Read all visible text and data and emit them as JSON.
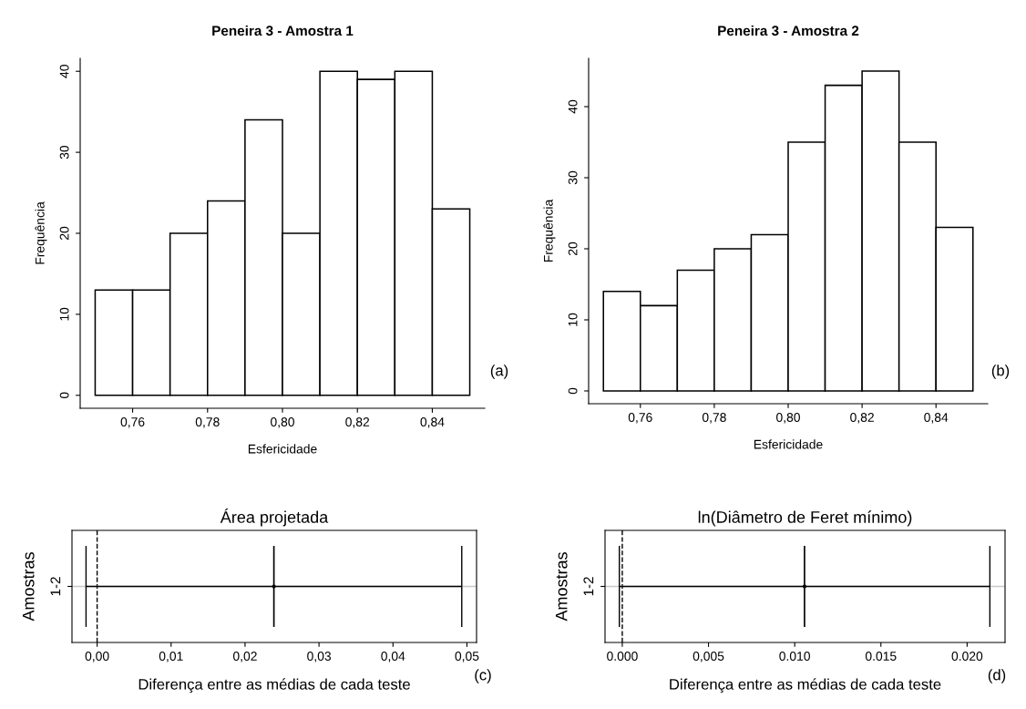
{
  "chart_data": [
    {
      "type": "histogram",
      "title": "Peneira 3 - Amostra 1",
      "xlabel": "Esfericidade",
      "ylabel": "Frequência",
      "bins": [
        0.75,
        0.76,
        0.77,
        0.78,
        0.79,
        0.8,
        0.81,
        0.82,
        0.83,
        0.84,
        0.85
      ],
      "values": [
        13,
        13,
        20,
        24,
        34,
        20,
        40,
        39,
        40,
        23
      ],
      "color": "#ffffff",
      "xlim": [
        0.746,
        0.854
      ],
      "ylim": [
        -1.6,
        41.6
      ],
      "xticks": [
        {
          "value": 0.76,
          "label": "0,76"
        },
        {
          "value": 0.78,
          "label": "0,78"
        },
        {
          "value": 0.8,
          "label": "0,80"
        },
        {
          "value": 0.82,
          "label": "0,82"
        },
        {
          "value": 0.84,
          "label": "0,84"
        }
      ],
      "yticks": [
        0,
        10,
        20,
        30,
        40
      ],
      "grid": false,
      "annotations": [
        "(a)"
      ]
    },
    {
      "type": "histogram",
      "title": "Peneira 3 - Amostra 2",
      "xlabel": "Esfericidade",
      "ylabel": "Frequência",
      "bins": [
        0.75,
        0.76,
        0.77,
        0.78,
        0.79,
        0.8,
        0.81,
        0.82,
        0.83,
        0.84,
        0.85
      ],
      "values": [
        14,
        12,
        17,
        20,
        22,
        35,
        43,
        45,
        35,
        23
      ],
      "color": "#ffffff",
      "xlim": [
        0.746,
        0.854
      ],
      "ylim": [
        -1.8,
        46.8
      ],
      "xticks": [
        {
          "value": 0.76,
          "label": "0,76"
        },
        {
          "value": 0.78,
          "label": "0,78"
        },
        {
          "value": 0.8,
          "label": "0,80"
        },
        {
          "value": 0.82,
          "label": "0,82"
        },
        {
          "value": 0.84,
          "label": "0,84"
        }
      ],
      "yticks": [
        0,
        10,
        20,
        30,
        40
      ],
      "grid": false,
      "annotations": [
        "(b)"
      ]
    },
    {
      "type": "scatter",
      "orientation": "horizontal",
      "title": "Área projetada",
      "xlabel": "Diferença entre as médias de cada teste",
      "ylabel": "Amostras",
      "categories": [
        "1-2"
      ],
      "values": [
        0.0239
      ],
      "errors": [
        [
          -0.0015,
          0.0493
        ]
      ],
      "color": "#000000",
      "xlim": [
        -0.0034,
        0.0513
      ],
      "xticks": [
        {
          "value": 0,
          "label": "0,00"
        },
        {
          "value": 0.01,
          "label": "0,01"
        },
        {
          "value": 0.02,
          "label": "0,02"
        },
        {
          "value": 0.03,
          "label": "0,03"
        },
        {
          "value": 0.04,
          "label": "0,04"
        },
        {
          "value": 0.05,
          "label": "0,05"
        }
      ],
      "ref_lines": [
        {
          "axis": "x",
          "value": 0,
          "color": "#000000",
          "line_style": "dashed"
        },
        {
          "axis": "y",
          "value": "1-2",
          "color": "#c8c8c8"
        }
      ],
      "annotations": [
        "(c)"
      ]
    },
    {
      "type": "scatter",
      "orientation": "horizontal",
      "title": "ln(Diâmetro de Feret mínimo)",
      "xlabel": "Diferença entre as médias de cada teste",
      "ylabel": "Amostras",
      "categories": [
        "1-2"
      ],
      "values": [
        0.01057
      ],
      "errors": [
        [
          -0.00017,
          0.02132
        ]
      ],
      "color": "#000000",
      "xlim": [
        -0.001,
        0.0222
      ],
      "xticks": [
        {
          "value": 0,
          "label": "0.000"
        },
        {
          "value": 0.005,
          "label": "0,005"
        },
        {
          "value": 0.01,
          "label": "0.010"
        },
        {
          "value": 0.015,
          "label": "0.015"
        },
        {
          "value": 0.02,
          "label": "0.020"
        }
      ],
      "ref_lines": [
        {
          "axis": "x",
          "value": 0,
          "color": "#000000",
          "line_style": "dashed"
        },
        {
          "axis": "y",
          "value": "1-2",
          "color": "#c8c8c8"
        }
      ],
      "annotations": [
        "(d)"
      ]
    }
  ]
}
